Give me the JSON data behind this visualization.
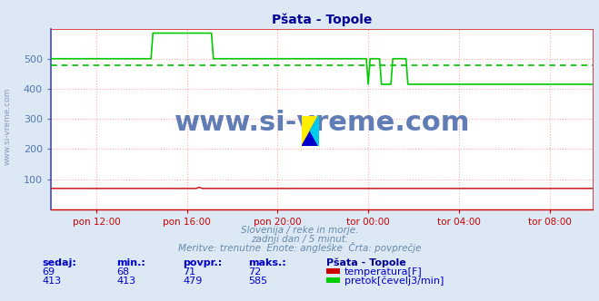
{
  "title": "Pšata - Topole",
  "background_color": "#dce9f5",
  "plot_bg_color": "#ffffff",
  "grid_color": "#ffaaaa",
  "ylim": [
    0,
    600
  ],
  "yticks": [
    100,
    200,
    300,
    400,
    500
  ],
  "xlabel_ticks": [
    "pon 12:00",
    "pon 16:00",
    "pon 20:00",
    "tor 00:00",
    "tor 04:00",
    "tor 08:00"
  ],
  "avg_line_color": "#00bb00",
  "avg_line_value": 479,
  "temp_color": "#cc0000",
  "flow_color": "#00cc00",
  "watermark_text": "www.si-vreme.com",
  "watermark_color": "#4466aa",
  "subtitle1": "Slovenija / reke in morje.",
  "subtitle2": "zadnji dan / 5 minut.",
  "subtitle3": "Meritve: trenutne  Enote: angleške  Črta: povprečje",
  "table_headers": [
    "sedaj:",
    "min.:",
    "povpr.:",
    "maks.:"
  ],
  "row1": [
    69,
    68,
    71,
    72
  ],
  "row2": [
    413,
    413,
    479,
    585
  ],
  "legend_label1": "temperatura[F]",
  "legend_label2": "pretok[čevelj3/min]",
  "station_name": "Pšata - Topole",
  "title_color": "#000099",
  "text_color": "#0000cc",
  "subtitle_color": "#6688aa",
  "xaxis_color": "#cc0000",
  "left_border_color": "#4444cc",
  "n_points": 288,
  "xtick_positions": [
    24,
    72,
    120,
    168,
    216,
    264
  ],
  "flow_base": 500,
  "flow_spike": 585,
  "flow_drop": 415,
  "spike_start": 54,
  "spike_end": 86,
  "drop_start": 168,
  "sub_spike1_start": 169,
  "sub_spike1_end": 175,
  "sub_spike2_start": 181,
  "sub_spike2_end": 189,
  "temp_base": 69
}
